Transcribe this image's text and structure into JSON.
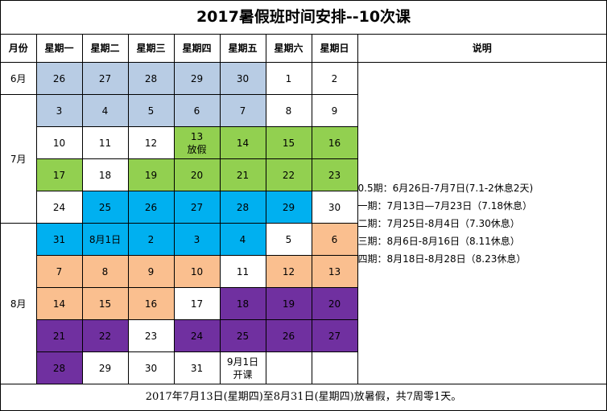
{
  "title": "2017暑假班时间安排--10次课",
  "header": [
    "月份",
    "星期一",
    "星期二",
    "星期三",
    "星期四",
    "星期五",
    "星期六",
    "星期日",
    "说明"
  ],
  "months": [
    {
      "label": "6月",
      "rows": 1
    },
    {
      "label": "7月",
      "rows": 4
    },
    {
      "label": "8月",
      "rows": 5
    }
  ],
  "weeks": [
    [
      {
        "text": "26",
        "fill": "#b8cce4"
      },
      {
        "text": "27",
        "fill": "#b8cce4"
      },
      {
        "text": "28",
        "fill": "#b8cce4"
      },
      {
        "text": "29",
        "fill": "#b8cce4"
      },
      {
        "text": "30",
        "fill": "#b8cce4"
      },
      {
        "text": "1"
      },
      {
        "text": "2"
      }
    ],
    [
      {
        "text": "3",
        "fill": "#b8cce4"
      },
      {
        "text": "4",
        "fill": "#b8cce4"
      },
      {
        "text": "5",
        "fill": "#b8cce4"
      },
      {
        "text": "6",
        "fill": "#b8cce4"
      },
      {
        "text": "7",
        "fill": "#b8cce4"
      },
      {
        "text": "8"
      },
      {
        "text": "9"
      }
    ],
    [
      {
        "text": "10"
      },
      {
        "text": "11"
      },
      {
        "text": "12"
      },
      {
        "text": [
          "13",
          "放假"
        ],
        "fill": "#92d050"
      },
      {
        "text": "14",
        "fill": "#92d050"
      },
      {
        "text": "15",
        "fill": "#92d050"
      },
      {
        "text": "16",
        "fill": "#92d050"
      }
    ],
    [
      {
        "text": "17",
        "fill": "#92d050"
      },
      {
        "text": "18"
      },
      {
        "text": "19",
        "fill": "#92d050"
      },
      {
        "text": "20",
        "fill": "#92d050"
      },
      {
        "text": "21",
        "fill": "#92d050"
      },
      {
        "text": "22",
        "fill": "#92d050"
      },
      {
        "text": "23",
        "fill": "#92d050"
      }
    ],
    [
      {
        "text": "24"
      },
      {
        "text": "25",
        "fill": "#00b0f0"
      },
      {
        "text": "26",
        "fill": "#00b0f0"
      },
      {
        "text": "27",
        "fill": "#00b0f0"
      },
      {
        "text": "28",
        "fill": "#00b0f0"
      },
      {
        "text": "29",
        "fill": "#00b0f0"
      },
      {
        "text": "30"
      }
    ],
    [
      {
        "text": "31",
        "fill": "#00b0f0"
      },
      {
        "text": "8月1日",
        "fill": "#00b0f0"
      },
      {
        "text": "2",
        "fill": "#00b0f0"
      },
      {
        "text": "3",
        "fill": "#00b0f0"
      },
      {
        "text": "4",
        "fill": "#00b0f0"
      },
      {
        "text": "5"
      },
      {
        "text": "6",
        "fill": "#fabf8f"
      }
    ],
    [
      {
        "text": "7",
        "fill": "#fabf8f"
      },
      {
        "text": "8",
        "fill": "#fabf8f"
      },
      {
        "text": "9",
        "fill": "#fabf8f"
      },
      {
        "text": "10",
        "fill": "#fabf8f"
      },
      {
        "text": "11"
      },
      {
        "text": "12",
        "fill": "#fabf8f"
      },
      {
        "text": "13",
        "fill": "#fabf8f"
      }
    ],
    [
      {
        "text": "14",
        "fill": "#fabf8f"
      },
      {
        "text": "15",
        "fill": "#fabf8f"
      },
      {
        "text": "16",
        "fill": "#fabf8f"
      },
      {
        "text": "17"
      },
      {
        "text": "18",
        "fill": "#7030a0"
      },
      {
        "text": "19",
        "fill": "#7030a0"
      },
      {
        "text": "20",
        "fill": "#7030a0"
      }
    ],
    [
      {
        "text": "21",
        "fill": "#7030a0"
      },
      {
        "text": "22",
        "fill": "#7030a0"
      },
      {
        "text": "23"
      },
      {
        "text": "24",
        "fill": "#7030a0"
      },
      {
        "text": "25",
        "fill": "#7030a0"
      },
      {
        "text": "26",
        "fill": "#7030a0"
      },
      {
        "text": "27",
        "fill": "#7030a0"
      }
    ],
    [
      {
        "text": "28",
        "fill": "#7030a0"
      },
      {
        "text": "29"
      },
      {
        "text": "30"
      },
      {
        "text": "31"
      },
      {
        "text": [
          "9月1日",
          "开课"
        ]
      },
      null,
      null
    ]
  ],
  "notes": [
    "0.5期：6月26日-7月7日(7.1-2休息2天)",
    "一期：7月13日—7月23日（7.18休息）",
    "二期：7月25日-8月4日（7.30休息）",
    "三期：8月6日-8月16日（8.11休息）",
    "四期：8月18日-8月28日（8.23休息）"
  ],
  "footer": "2017年7月13日(星期四)至8月31日(星期四)放暑假，共7周零1天。"
}
